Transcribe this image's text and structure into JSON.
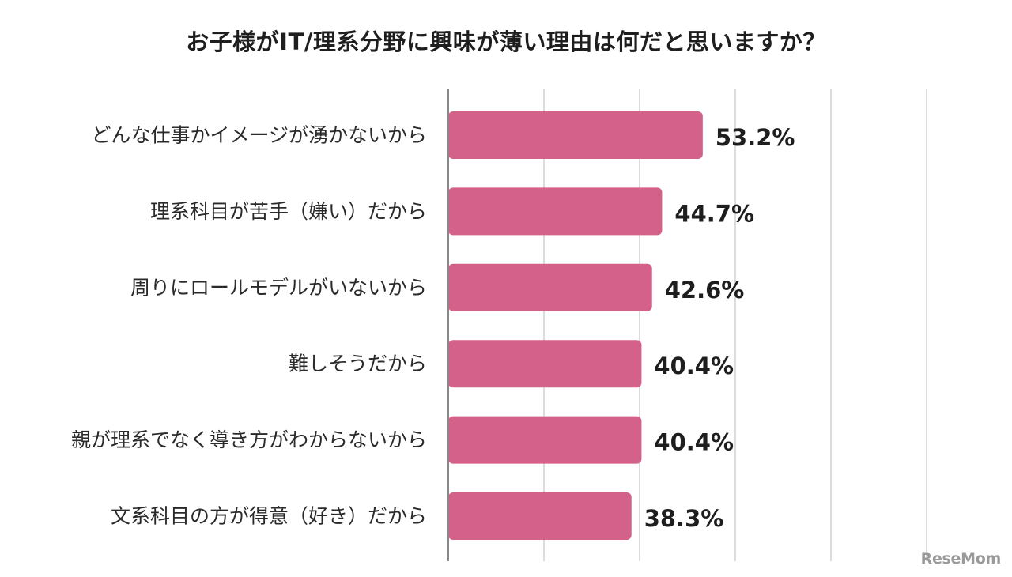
{
  "chart_data": {
    "type": "bar",
    "orientation": "horizontal",
    "title": "お子様がIT/理系分野に興味が薄い理由は何だと思いますか？",
    "categories": [
      "どんな仕事かイメージが湧かないから",
      "理系科目が苦手（嫌い）だから",
      "周りにロールモデルがいないから",
      "難しそうだから",
      "親が理系でなく導き方がわからないから",
      "文系科目の方が得意（好き）だから"
    ],
    "values": [
      53.2,
      44.7,
      42.6,
      40.4,
      40.4,
      38.3
    ],
    "value_suffix": "%",
    "xlim": [
      0,
      100
    ],
    "grid": true,
    "legend": "none",
    "bar_color": "#d4618a",
    "grid_color": "#d0d0d0",
    "axis_color": "#888888"
  },
  "watermark": "ReseMom"
}
